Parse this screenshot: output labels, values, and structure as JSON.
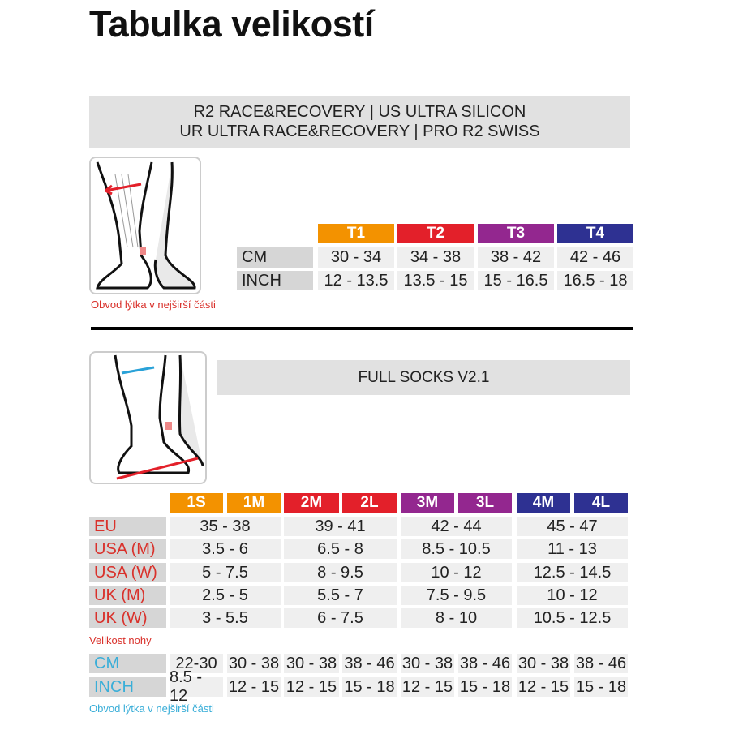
{
  "title": "Tabulka velikostí",
  "colors": {
    "t1": "#f39200",
    "t2": "#e3202a",
    "t3": "#93278f",
    "t4": "#2e3192",
    "red_label": "#d9312b",
    "blue_label": "#3aaed8"
  },
  "section1": {
    "header_lines": [
      "R2 RACE&RECOVERY  |  US ULTRA SILICON",
      "UR ULTRA RACE&RECOVERY  |  PRO R2 SWISS"
    ],
    "illustration": "calf-measurement-sock-icon",
    "sizes": [
      "T1",
      "T2",
      "T3",
      "T4"
    ],
    "rows": [
      {
        "label": "CM",
        "values": [
          "30 - 34",
          "34 - 38",
          "38 - 42",
          "42 - 46"
        ]
      },
      {
        "label": "INCH",
        "values": [
          "12 - 13.5",
          "13.5 - 15",
          "15 - 16.5",
          "16.5 - 18"
        ]
      }
    ],
    "caption": "Obvod lýtka v nejširší části"
  },
  "section2": {
    "header": "FULL SOCKS V2.1",
    "illustration": "foot-and-calf-measurement-sock-icon",
    "sizes": [
      "1S",
      "1M",
      "2M",
      "2L",
      "3M",
      "3L",
      "4M",
      "4L"
    ],
    "foot_rows": [
      {
        "label": "EU",
        "values": [
          "35 - 38",
          "39 - 41",
          "42 - 44",
          "45 - 47"
        ]
      },
      {
        "label": "USA (M)",
        "values": [
          "3.5 - 6",
          "6.5 - 8",
          "8.5 - 10.5",
          "11 - 13"
        ]
      },
      {
        "label": "USA (W)",
        "values": [
          "5 - 7.5",
          "8 - 9.5",
          "10 - 12",
          "12.5 - 14.5"
        ]
      },
      {
        "label": "UK (M)",
        "values": [
          "2.5 - 5",
          "5.5 - 7",
          "7.5 - 9.5",
          "10 - 12"
        ]
      },
      {
        "label": "UK (W)",
        "values": [
          "3 - 5.5",
          "6 - 7.5",
          "8 - 10",
          "10.5 - 12.5"
        ]
      }
    ],
    "foot_caption": "Velikost nohy",
    "calf_rows": [
      {
        "label": "CM",
        "values": [
          "22-30",
          "30 - 38",
          "30 - 38",
          "38 - 46",
          "30 - 38",
          "38 - 46",
          "30 - 38",
          "38 - 46"
        ]
      },
      {
        "label": "INCH",
        "values": [
          "8.5 - 12",
          "12 - 15",
          "12 - 15",
          "15 - 18",
          "12 - 15",
          "15 - 18",
          "12 - 15",
          "15 - 18"
        ]
      }
    ],
    "calf_caption": "Obvod lýtka v nejširší části"
  }
}
